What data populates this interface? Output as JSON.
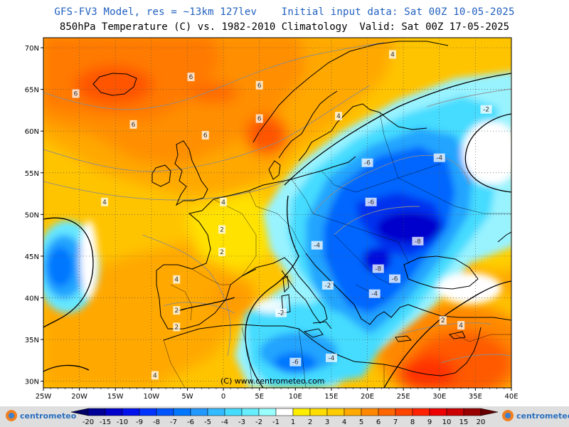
{
  "header": {
    "title_line1": "GFS-FV3 Model, res = ~13km 127lev    Initial input data: Sat 00Z 10-05-2025",
    "title_line2": "850hPa Temperature (C) vs. 1982-2010 Climatology  Valid: Sat 00Z 17-05-2025"
  },
  "map": {
    "lon_labels": [
      "25W",
      "20W",
      "15W",
      "10W",
      "5W",
      "0",
      "5E",
      "10E",
      "15E",
      "20E",
      "25E",
      "30E",
      "35E",
      "40E"
    ],
    "lat_labels": [
      "70N",
      "65N",
      "60N",
      "55N",
      "50N",
      "45N",
      "40N",
      "35N",
      "30N"
    ],
    "copyright": "(C) www.centrometeo.com",
    "contour_labels": [
      {
        "text": "6",
        "lon": -20.5,
        "lat": 64.5
      },
      {
        "text": "6",
        "lon": -4.5,
        "lat": 66.5
      },
      {
        "text": "6",
        "lon": 5,
        "lat": 65.5
      },
      {
        "text": "6",
        "lon": -12.5,
        "lat": 60.8
      },
      {
        "text": "6",
        "lon": -2.5,
        "lat": 59.5
      },
      {
        "text": "6",
        "lon": 5,
        "lat": 61.5
      },
      {
        "text": "4",
        "lon": -16.5,
        "lat": 51.5
      },
      {
        "text": "4",
        "lon": 0,
        "lat": 51.5
      },
      {
        "text": "4",
        "lon": 16,
        "lat": 61.8
      },
      {
        "text": "4",
        "lon": 23.5,
        "lat": 69.2
      },
      {
        "text": "2",
        "lon": -0.2,
        "lat": 48.2
      },
      {
        "text": "2",
        "lon": -0.2,
        "lat": 45.5
      },
      {
        "text": "4",
        "lon": -6.5,
        "lat": 42.2
      },
      {
        "text": "2",
        "lon": -6.5,
        "lat": 38.5
      },
      {
        "text": "2",
        "lon": -6.5,
        "lat": 36.5
      },
      {
        "text": "4",
        "lon": -9.5,
        "lat": 30.7
      },
      {
        "text": "-2",
        "lon": 8,
        "lat": 38.2
      },
      {
        "text": "-2",
        "lon": 14.5,
        "lat": 41.5
      },
      {
        "text": "-4",
        "lon": 13,
        "lat": 46.3
      },
      {
        "text": "-6",
        "lon": 20,
        "lat": 56.2
      },
      {
        "text": "-6",
        "lon": 20.5,
        "lat": 51.5
      },
      {
        "text": "-8",
        "lon": 27,
        "lat": 46.8
      },
      {
        "text": "-8",
        "lon": 21.5,
        "lat": 43.5
      },
      {
        "text": "-6",
        "lon": 23.8,
        "lat": 42.3
      },
      {
        "text": "-4",
        "lon": 21,
        "lat": 40.5
      },
      {
        "text": "-4",
        "lon": 30,
        "lat": 56.8
      },
      {
        "text": "-2",
        "lon": 36.5,
        "lat": 62.6
      },
      {
        "text": "-6",
        "lon": 10,
        "lat": 32.3
      },
      {
        "text": "-4",
        "lon": 15,
        "lat": 32.8
      },
      {
        "text": "2",
        "lon": 30.5,
        "lat": 37.3
      },
      {
        "text": "4",
        "lon": 33,
        "lat": 36.7
      }
    ]
  },
  "colorbar": {
    "labels": [
      "-20",
      "-15",
      "-10",
      "-9",
      "-8",
      "-7",
      "-6",
      "-5",
      "-4",
      "-3",
      "-2",
      "-1",
      "1",
      "2",
      "3",
      "4",
      "5",
      "6",
      "7",
      "8",
      "9",
      "10",
      "15",
      "20"
    ],
    "colors": [
      "#000066",
      "#000099",
      "#0000cc",
      "#0011ee",
      "#0033ff",
      "#0055ff",
      "#0077ff",
      "#2299ff",
      "#33bbff",
      "#44ddff",
      "#66eeff",
      "#99ffff",
      "#ffffff",
      "#ffee00",
      "#ffdd00",
      "#ffcc00",
      "#ffaa00",
      "#ff8800",
      "#ff6600",
      "#ff4400",
      "#ff2200",
      "#ee0000",
      "#cc0000",
      "#990000",
      "#660000"
    ],
    "logo_left": "centrometeo",
    "logo_right": "centrometeo"
  }
}
